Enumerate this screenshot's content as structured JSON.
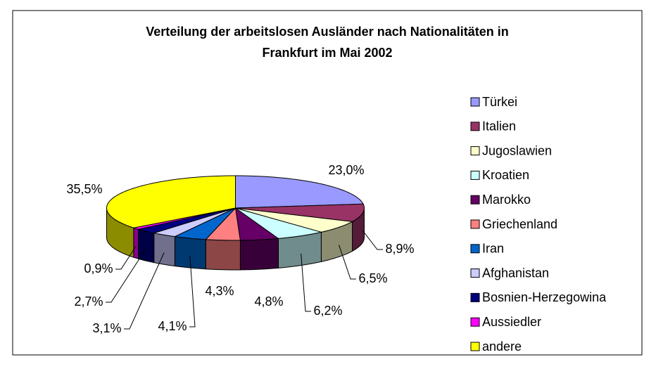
{
  "chart_data": {
    "type": "pie",
    "title": "Verteilung der arbeitslosen Ausländer nach Nationalitäten in",
    "subtitle": "Frankfurt im Mai 2002",
    "categories": [
      "Türkei",
      "Italien",
      "Jugoslawien",
      "Kroatien",
      "Marokko",
      "Griechenland",
      "Iran",
      "Afghanistan",
      "Bosnien-Herzegowina",
      "Aussiedler",
      "andere"
    ],
    "values": [
      23.0,
      8.9,
      6.5,
      6.2,
      4.8,
      4.3,
      4.1,
      3.1,
      2.7,
      0.9,
      35.5
    ],
    "value_labels": [
      "23,0%",
      "8,9%",
      "6,5%",
      "6,2%",
      "4,8%",
      "4,3%",
      "4,1%",
      "3,1%",
      "2,7%",
      "0,9%",
      "35,5%"
    ],
    "colors": [
      "#9999ff",
      "#993366",
      "#ffffcc",
      "#ccffff",
      "#660066",
      "#ff8080",
      "#0066cc",
      "#ccccff",
      "#000080",
      "#ff00ff",
      "#ffff00"
    ],
    "legend": "right"
  }
}
